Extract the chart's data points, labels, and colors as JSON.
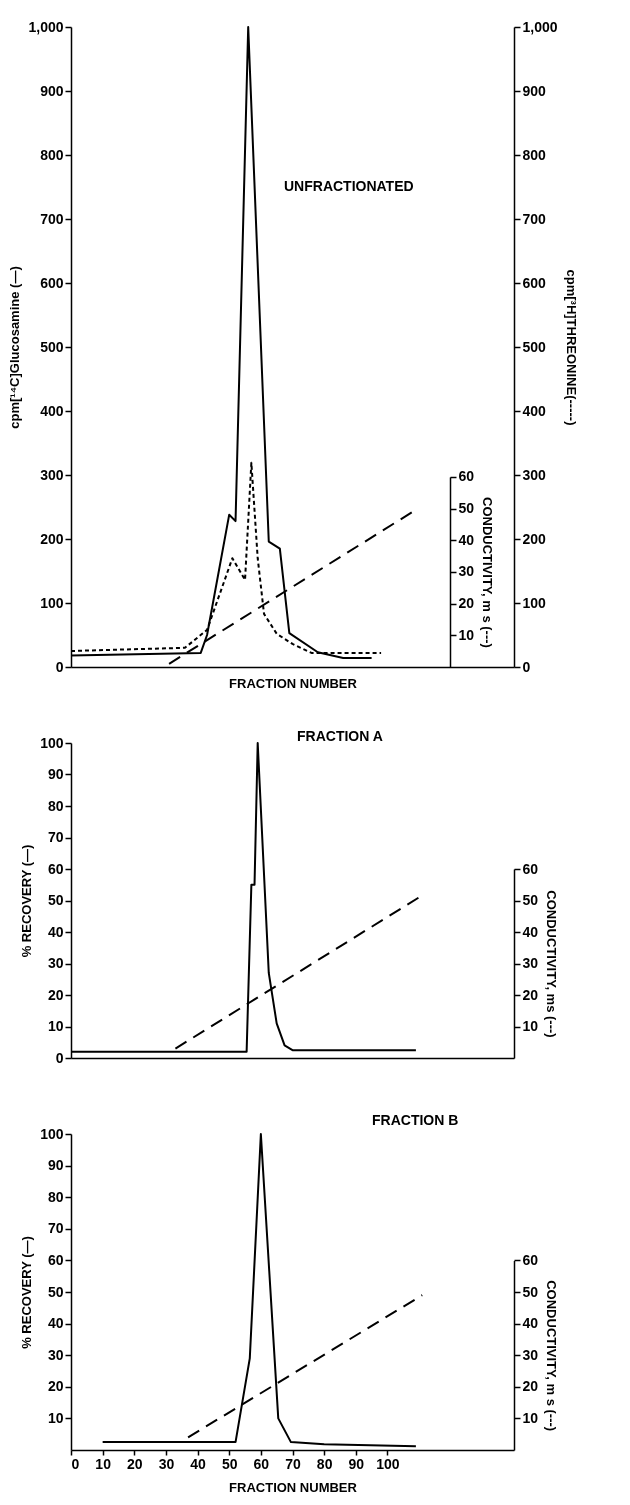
{
  "chart_data": [
    {
      "type": "line",
      "title": "UNFRACTIONATED",
      "xlabel": "FRACTION NUMBER",
      "ylabel": "cpm[¹⁴C]Glucosamine (—)",
      "y2label": "cpm[³H]THREONINE(-----)",
      "y3label": "CONDUCTIVITY, m s (---)",
      "xlim": [
        0,
        140
      ],
      "ylim": [
        0,
        1000
      ],
      "yticks": [
        0,
        100,
        200,
        300,
        400,
        500,
        600,
        700,
        800,
        900,
        {
          "value": 1000,
          "label": "1,000"
        }
      ],
      "y2lim": [
        0,
        1000
      ],
      "y2ticks": [
        0,
        100,
        200,
        300,
        400,
        500,
        600,
        700,
        800,
        900,
        {
          "value": 1000,
          "label": "1,000"
        }
      ],
      "y3lim": [
        0,
        60
      ],
      "y3ticks": [
        10,
        20,
        30,
        40,
        50,
        60
      ],
      "tick_labels": "y",
      "series": [
        {
          "color": "#000000",
          "line_style": "solid",
          "x": [
            0,
            41,
            43,
            50,
            52,
            56,
            62.5,
            66,
            69,
            78,
            86,
            95
          ],
          "values": [
            18,
            22,
            50,
            238,
            228,
            1000,
            196,
            185,
            53,
            23,
            14,
            14
          ]
        },
        {
          "color": "#000000",
          "line_style": "dotted",
          "axis": "y2",
          "x": [
            0,
            36,
            43,
            51,
            55,
            57,
            59,
            61,
            65,
            70,
            76,
            98
          ],
          "values": [
            25,
            30,
            58,
            170,
            136,
            319,
            170,
            83,
            52,
            36,
            22,
            22
          ]
        },
        {
          "color": "#000000",
          "line_style": "dashed",
          "axis": "y3",
          "x": [
            31,
            108
          ],
          "values": [
            1,
            49
          ]
        }
      ]
    },
    {
      "type": "line",
      "title": "FRACTION A",
      "ylabel": "% RECOVERY (—)",
      "y2label": "CONDUCTIVITY, ms (---)",
      "xlim": [
        0,
        140
      ],
      "ylim": [
        0,
        100
      ],
      "yticks": [
        0,
        10,
        20,
        30,
        40,
        50,
        60,
        70,
        80,
        90,
        100
      ],
      "y2lim": [
        0,
        60
      ],
      "y2ticks": [
        10,
        20,
        30,
        40,
        50,
        60
      ],
      "tick_labels": "y",
      "series": [
        {
          "color": "#000000",
          "line_style": "solid",
          "x": [
            0,
            55.5,
            57,
            58,
            59,
            62.5,
            65,
            67.5,
            70,
            109
          ],
          "values": [
            2,
            2,
            55,
            55,
            100,
            27,
            11,
            4,
            2.5,
            2.5
          ]
        },
        {
          "color": "#000000",
          "line_style": "dashed",
          "axis": "y2",
          "x": [
            33,
            110
          ],
          "values": [
            3,
            51
          ]
        }
      ]
    },
    {
      "type": "line",
      "title": "FRACTION B",
      "xlabel": "FRACTION NUMBER",
      "ylabel": "% RECOVERY (—)",
      "y2label": "CONDUCTIVITY, m s (---)",
      "xlim": [
        0,
        140
      ],
      "xticks": [
        0,
        10,
        20,
        30,
        40,
        50,
        60,
        70,
        80,
        90,
        100
      ],
      "ylim": [
        0,
        100
      ],
      "yticks": [
        10,
        20,
        30,
        40,
        50,
        60,
        70,
        80,
        90,
        100
      ],
      "y2lim": [
        0,
        60
      ],
      "y2ticks": [
        10,
        20,
        30,
        40,
        50,
        60
      ],
      "series": [
        {
          "color": "#000000",
          "line_style": "solid",
          "x": [
            10,
            52,
            56.5,
            60,
            65.5,
            69.5,
            80,
            109
          ],
          "values": [
            2.5,
            2.5,
            29,
            100,
            10,
            2.5,
            1.8,
            1.2
          ]
        },
        {
          "color": "#000000",
          "line_style": "dashed",
          "axis": "y2",
          "x": [
            37,
            111
          ],
          "values": [
            4,
            49
          ]
        }
      ]
    }
  ]
}
